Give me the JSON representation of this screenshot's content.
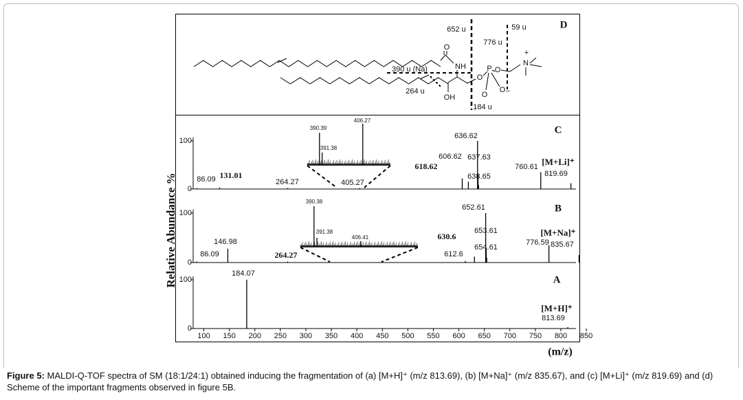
{
  "figure": {
    "y_label": "Relative Abundance %",
    "x_label": "(m/z)",
    "scheme": {
      "panel": "D",
      "fragments": [
        "652 u",
        "776 u",
        "59 u",
        "390 u (Na)",
        "264 u",
        "184 u"
      ],
      "atoms": [
        "O",
        "NH",
        "OH",
        "O",
        "P",
        "O",
        "O",
        "O",
        "−",
        "N",
        "+"
      ]
    },
    "caption": {
      "label": "Figure 5:",
      "text": "MALDI-Q-TOF spectra of SM (18:1/24:1) obtained inducing the fragmentation of (a) [M+H]⁺ (m/z 813.69), (b) [M+Na]⁺ (m/z 835.67), and (c) [M+Li]⁺ (m/z 819.69) and (d) Scheme of the important fragments observed in figure 5B."
    }
  },
  "chart_data": [
    {
      "type": "bar",
      "panel": "C",
      "ion": "[M+Li]⁺",
      "x": [
        86.09,
        131.01,
        264.27,
        405.27,
        606.62,
        618.62,
        636.62,
        637.63,
        638.65,
        760.61,
        819.69
      ],
      "values": [
        2,
        3,
        2,
        2,
        22,
        15,
        100,
        30,
        8,
        35,
        12
      ],
      "bold": [
        false,
        true,
        false,
        false,
        false,
        true,
        false,
        false,
        false,
        false,
        false
      ],
      "xlim": [
        79,
        862
      ],
      "ylim": [
        0,
        100
      ],
      "yticks": [
        0,
        100
      ],
      "inset": {
        "x": [
          390.39,
          391.38,
          406.27
        ],
        "values": [
          78,
          30,
          100
        ],
        "xlim": [
          385.9,
          416.4
        ]
      }
    },
    {
      "type": "bar",
      "panel": "B",
      "ion": "[M+Na]⁺",
      "x": [
        86.09,
        146.98,
        264.27,
        612.6,
        630.6,
        652.61,
        653.61,
        654.61,
        776.59,
        835.67
      ],
      "values": [
        2,
        28,
        2,
        3,
        12,
        100,
        30,
        10,
        35,
        15
      ],
      "bold": [
        false,
        false,
        true,
        false,
        true,
        false,
        false,
        false,
        false,
        false
      ],
      "xlim": [
        79,
        862
      ],
      "ylim": [
        0,
        100
      ],
      "yticks": [
        0,
        100
      ],
      "inset": {
        "x": [
          390.38,
          391.38,
          406.41
        ],
        "values": [
          100,
          22,
          14
        ],
        "xlim": [
          385.7,
          426.0
        ]
      }
    },
    {
      "type": "bar",
      "panel": "A",
      "ion": "[M+H]⁺",
      "x": [
        184.07,
        813.69
      ],
      "values": [
        100,
        3
      ],
      "bold": [
        false,
        false
      ],
      "xlim": [
        79,
        862
      ],
      "ylim": [
        0,
        100
      ],
      "yticks": [
        0,
        100
      ],
      "xticks": [
        100,
        150,
        200,
        250,
        300,
        350,
        400,
        450,
        500,
        550,
        600,
        650,
        700,
        750,
        800,
        850
      ]
    }
  ]
}
